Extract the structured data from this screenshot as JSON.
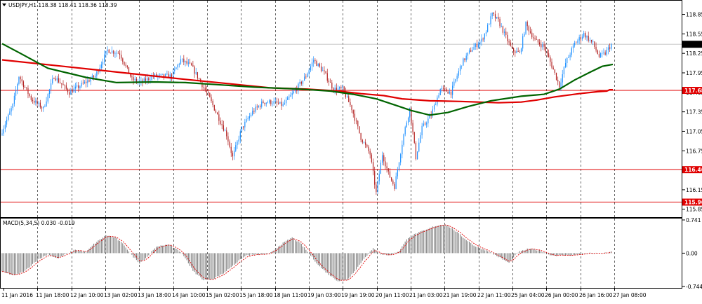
{
  "chart_data": [
    {
      "type": "candlestick",
      "header": "USDJPY,H1  118.38 118.41 118.36 118.39",
      "header_icon": "dropdown-triangle-icon",
      "ylim": [
        115.75,
        119.05
      ],
      "y_ticks": [
        "118.85",
        "118.55",
        "118.25",
        "117.95",
        "117.65",
        "117.35",
        "117.05",
        "116.75",
        "116.45",
        "116.15",
        "115.85"
      ],
      "current_price": 118.39,
      "current_price_label": "118.39",
      "colors": {
        "bull": "#1e90ff",
        "bear": "#b22222",
        "ma_fast": "#006400",
        "ma_slow": "#e00000",
        "hline": "#e00000",
        "grid": "#000000",
        "tag": "#e00000"
      },
      "horizontal_lines": [
        {
          "value": 117.68,
          "label": "117.68"
        },
        {
          "value": 116.46,
          "label": "116.46"
        },
        {
          "value": 115.96,
          "label": "115.96"
        }
      ],
      "ma_slow": [
        [
          0,
          118.15
        ],
        [
          40,
          118.05
        ],
        [
          80,
          117.95
        ],
        [
          120,
          117.85
        ],
        [
          150,
          117.78
        ],
        [
          175,
          117.72
        ],
        [
          200,
          117.7
        ],
        [
          220,
          117.67
        ],
        [
          235,
          117.63
        ],
        [
          250,
          117.6
        ],
        [
          262,
          117.55
        ],
        [
          280,
          117.52
        ],
        [
          300,
          117.51
        ],
        [
          325,
          117.49
        ],
        [
          340,
          117.5
        ],
        [
          350,
          117.53
        ],
        [
          362,
          117.58
        ],
        [
          378,
          117.63
        ],
        [
          390,
          117.66
        ],
        [
          396,
          117.67
        ],
        [
          398,
          117.69
        ],
        [
          400,
          117.69
        ]
      ],
      "ma_fast": [
        [
          0,
          118.4
        ],
        [
          12,
          118.25
        ],
        [
          30,
          118.02
        ],
        [
          55,
          117.88
        ],
        [
          75,
          117.8
        ],
        [
          100,
          117.81
        ],
        [
          120,
          117.8
        ],
        [
          140,
          117.77
        ],
        [
          165,
          117.73
        ],
        [
          195,
          117.7
        ],
        [
          215,
          117.67
        ],
        [
          230,
          117.62
        ],
        [
          245,
          117.55
        ],
        [
          258,
          117.45
        ],
        [
          268,
          117.37
        ],
        [
          280,
          117.3
        ],
        [
          292,
          117.34
        ],
        [
          305,
          117.43
        ],
        [
          320,
          117.52
        ],
        [
          340,
          117.59
        ],
        [
          355,
          117.62
        ],
        [
          365,
          117.7
        ],
        [
          375,
          117.84
        ],
        [
          385,
          117.96
        ],
        [
          393,
          118.05
        ],
        [
          400,
          118.08
        ]
      ],
      "pivots": [
        [
          0,
          117.0
        ],
        [
          8,
          117.45
        ],
        [
          12,
          117.9
        ],
        [
          20,
          117.55
        ],
        [
          28,
          117.4
        ],
        [
          35,
          117.9
        ],
        [
          45,
          117.65
        ],
        [
          52,
          117.75
        ],
        [
          62,
          117.9
        ],
        [
          70,
          118.3
        ],
        [
          78,
          118.25
        ],
        [
          86,
          117.85
        ],
        [
          92,
          117.8
        ],
        [
          100,
          117.9
        ],
        [
          112,
          117.9
        ],
        [
          118,
          118.15
        ],
        [
          125,
          118.05
        ],
        [
          130,
          117.85
        ],
        [
          136,
          117.6
        ],
        [
          142,
          117.3
        ],
        [
          148,
          117.0
        ],
        [
          152,
          116.65
        ],
        [
          158,
          117.1
        ],
        [
          165,
          117.35
        ],
        [
          172,
          117.5
        ],
        [
          178,
          117.5
        ],
        [
          185,
          117.45
        ],
        [
          192,
          117.65
        ],
        [
          200,
          117.9
        ],
        [
          205,
          118.15
        ],
        [
          212,
          117.95
        ],
        [
          218,
          117.7
        ],
        [
          224,
          117.7
        ],
        [
          230,
          117.4
        ],
        [
          236,
          116.95
        ],
        [
          242,
          116.7
        ],
        [
          246,
          116.1
        ],
        [
          250,
          116.7
        ],
        [
          254,
          116.4
        ],
        [
          258,
          116.2
        ],
        [
          264,
          117.0
        ],
        [
          268,
          117.4
        ],
        [
          272,
          116.65
        ],
        [
          276,
          117.1
        ],
        [
          282,
          117.3
        ],
        [
          288,
          117.7
        ],
        [
          295,
          117.65
        ],
        [
          302,
          118.1
        ],
        [
          308,
          118.3
        ],
        [
          315,
          118.45
        ],
        [
          318,
          118.6
        ],
        [
          322,
          118.85
        ],
        [
          326,
          118.75
        ],
        [
          330,
          118.55
        ],
        [
          335,
          118.3
        ],
        [
          340,
          118.25
        ],
        [
          344,
          118.7
        ],
        [
          350,
          118.45
        ],
        [
          356,
          118.35
        ],
        [
          362,
          118.0
        ],
        [
          366,
          117.75
        ],
        [
          370,
          118.1
        ],
        [
          376,
          118.4
        ],
        [
          382,
          118.55
        ],
        [
          388,
          118.4
        ],
        [
          392,
          118.2
        ],
        [
          396,
          118.25
        ],
        [
          400,
          118.39
        ]
      ],
      "x_labels": [
        "11 Jan 2016",
        "11 Jan 18:00",
        "12 Jan 10:00",
        "13 Jan 02:00",
        "13 Jan 18:00",
        "14 Jan 10:00",
        "15 Jan 02:00",
        "15 Jan 18:00",
        "18 Jan 11:00",
        "19 Jan 03:00",
        "19 Jan 19:00",
        "20 Jan 11:00",
        "21 Jan 03:00",
        "21 Jan 19:00",
        "22 Jan 11:00",
        "25 Jan 04:00",
        "26 Jan 00:00",
        "26 Jan 16:00",
        "27 Jan 08:00"
      ]
    },
    {
      "type": "macd",
      "header": "MACD(5,34,5) 0.030 -0.019",
      "ylim": [
        -0.744,
        0.741
      ],
      "y_ticks": [
        "0.741",
        "0.00",
        "-0.744"
      ],
      "colors": {
        "histogram": "#808080",
        "signal": "#e00000"
      },
      "histogram_pivots": [
        [
          0,
          -0.42
        ],
        [
          8,
          -0.5
        ],
        [
          15,
          -0.4
        ],
        [
          22,
          -0.18
        ],
        [
          30,
          -0.02
        ],
        [
          36,
          -0.12
        ],
        [
          42,
          -0.02
        ],
        [
          48,
          0.08
        ],
        [
          55,
          0.02
        ],
        [
          60,
          0.2
        ],
        [
          68,
          0.4
        ],
        [
          74,
          0.35
        ],
        [
          80,
          0.18
        ],
        [
          85,
          -0.05
        ],
        [
          90,
          -0.22
        ],
        [
          95,
          -0.08
        ],
        [
          100,
          0.12
        ],
        [
          108,
          0.2
        ],
        [
          115,
          0.08
        ],
        [
          120,
          -0.1
        ],
        [
          125,
          -0.4
        ],
        [
          132,
          -0.6
        ],
        [
          138,
          -0.58
        ],
        [
          145,
          -0.45
        ],
        [
          152,
          -0.25
        ],
        [
          160,
          -0.05
        ],
        [
          168,
          -0.03
        ],
        [
          175,
          -0.02
        ],
        [
          182,
          0.18
        ],
        [
          190,
          0.35
        ],
        [
          196,
          0.2
        ],
        [
          202,
          -0.05
        ],
        [
          208,
          -0.3
        ],
        [
          214,
          -0.48
        ],
        [
          220,
          -0.62
        ],
        [
          226,
          -0.6
        ],
        [
          232,
          -0.35
        ],
        [
          238,
          -0.08
        ],
        [
          243,
          0.1
        ],
        [
          248,
          -0.02
        ],
        [
          254,
          -0.05
        ],
        [
          260,
          0.05
        ],
        [
          266,
          0.35
        ],
        [
          272,
          0.45
        ],
        [
          278,
          0.52
        ],
        [
          283,
          0.6
        ],
        [
          290,
          0.65
        ],
        [
          296,
          0.52
        ],
        [
          302,
          0.35
        ],
        [
          310,
          0.15
        ],
        [
          318,
          0.05
        ],
        [
          326,
          -0.1
        ],
        [
          332,
          -0.22
        ],
        [
          338,
          0.02
        ],
        [
          345,
          0.1
        ],
        [
          352,
          0.06
        ],
        [
          360,
          -0.05
        ],
        [
          368,
          -0.05
        ],
        [
          376,
          -0.04
        ],
        [
          384,
          0.0
        ],
        [
          392,
          -0.01
        ],
        [
          400,
          0.03
        ]
      ]
    }
  ]
}
